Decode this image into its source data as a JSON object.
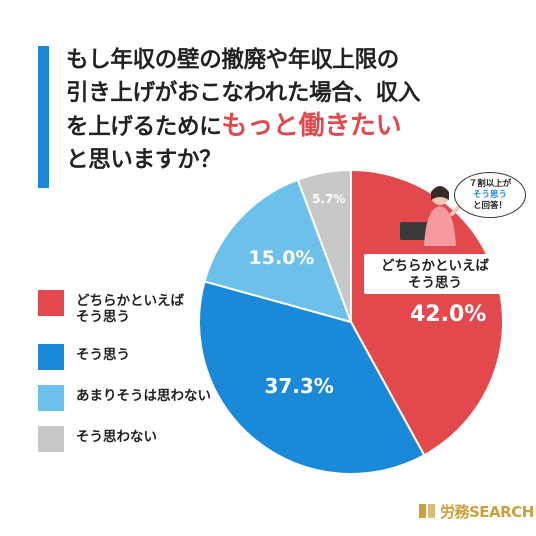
{
  "title": {
    "line1": "もし年収の壁の撤廃や年収上限の",
    "line2": "引き上げがおこなわれた場合、収入",
    "line3_prefix": "を上げるために",
    "line3_emphasis": "もっと働きたい",
    "line4": "と思いますか？"
  },
  "callout": {
    "line1": "どちらかといえば",
    "line2": "そう思う"
  },
  "speech_bubble": {
    "line1": "７割以上が",
    "line2": "そう思う",
    "line3": "と回答！"
  },
  "brand": {
    "name": "労務SEARCH"
  },
  "colors": {
    "red": "#e2484c",
    "blue": "#1a8ad8",
    "light_blue": "#6cc0ea",
    "gray": "#c8c8c8",
    "brand_gold": "#c9a13b"
  },
  "chart_data": {
    "type": "pie",
    "start": "12 o'clock",
    "direction": "clockwise",
    "slices": [
      {
        "label": "どちらかといえばそう思う",
        "value": 42.0,
        "display": "42.0%",
        "color": "#e2484c"
      },
      {
        "label": "そう思う",
        "value": 37.3,
        "display": "37.3%",
        "color": "#1a8ad8"
      },
      {
        "label": "あまりそうは思わない",
        "value": 15.0,
        "display": "15.0%",
        "color": "#6cc0ea"
      },
      {
        "label": "そう思わない",
        "value": 5.7,
        "display": "5.7%",
        "color": "#c8c8c8"
      }
    ],
    "legend": [
      {
        "line1": "どちらかといえば",
        "line2": "そう思う",
        "color": "#e2484c"
      },
      {
        "line1": "そう思う",
        "line2": "",
        "color": "#1a8ad8"
      },
      {
        "line1": "あまりそうは思わない",
        "line2": "",
        "color": "#6cc0ea"
      },
      {
        "line1": "そう思わない",
        "line2": "",
        "color": "#c8c8c8"
      }
    ]
  }
}
